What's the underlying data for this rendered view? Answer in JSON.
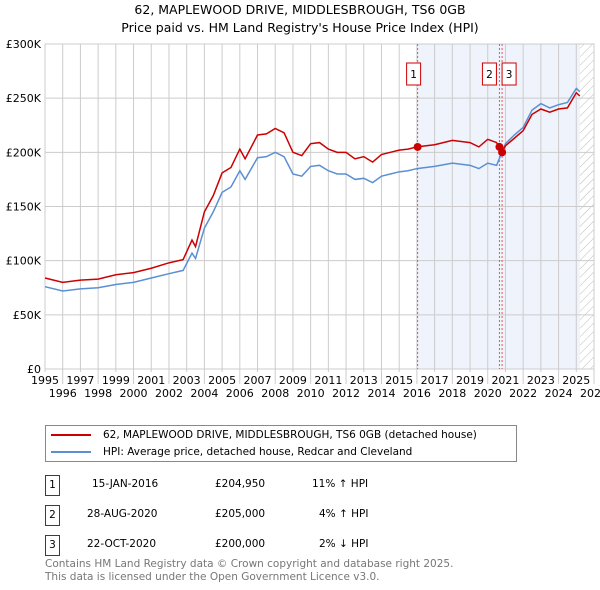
{
  "chart_data": {
    "type": "line",
    "title": "62, MAPLEWOOD DRIVE, MIDDLESBROUGH, TS6 0GB",
    "subtitle": "Price paid vs. HM Land Registry's House Price Index (HPI)",
    "xlim": [
      1995,
      2026
    ],
    "ylim": [
      0,
      300000
    ],
    "yticks": [
      0,
      50000,
      100000,
      150000,
      200000,
      250000,
      300000
    ],
    "ytick_labels": [
      "£0",
      "£50K",
      "£100K",
      "£150K",
      "£200K",
      "£250K",
      "£300K"
    ],
    "xticks": [
      1995,
      1996,
      1997,
      1998,
      1999,
      2000,
      2001,
      2002,
      2003,
      2004,
      2005,
      2006,
      2007,
      2008,
      2009,
      2010,
      2011,
      2012,
      2013,
      2014,
      2015,
      2016,
      2017,
      2018,
      2019,
      2020,
      2021,
      2022,
      2023,
      2024,
      2025,
      2026
    ],
    "grid": true,
    "shaded_range": [
      2016.04,
      2025.2
    ],
    "hatched_range": [
      2025.2,
      2026
    ],
    "series": [
      {
        "name": "62, MAPLEWOOD DRIVE, MIDDLESBROUGH, TS6 0GB (detached house)",
        "color": "#cc0000",
        "x": [
          1995,
          1996,
          1997,
          1998,
          1999,
          2000,
          2001,
          2002,
          2002.8,
          2003.3,
          2003.5,
          2004,
          2004.5,
          2005,
          2005.5,
          2006,
          2006.3,
          2007,
          2007.5,
          2008,
          2008.5,
          2009,
          2009.5,
          2010,
          2010.5,
          2011,
          2011.5,
          2012,
          2012.5,
          2013,
          2013.5,
          2014,
          2014.5,
          2015,
          2015.5,
          2016,
          2017,
          2018,
          2019,
          2019.5,
          2020,
          2020.5,
          2020.8,
          2021,
          2021.5,
          2022,
          2022.5,
          2023,
          2023.5,
          2024,
          2024.5,
          2025,
          2025.2
        ],
        "y": [
          84000,
          80000,
          82000,
          83000,
          87000,
          89000,
          93000,
          98000,
          101000,
          119000,
          113000,
          145000,
          160000,
          181000,
          186000,
          203000,
          194000,
          216000,
          217000,
          222000,
          218000,
          200000,
          197000,
          208000,
          209000,
          203000,
          200000,
          200000,
          194000,
          196000,
          191000,
          198000,
          200000,
          202000,
          203000,
          205000,
          207000,
          211000,
          209000,
          205000,
          212000,
          209000,
          200000,
          206000,
          213000,
          220000,
          235000,
          240000,
          237000,
          240000,
          241000,
          255000,
          252000
        ]
      },
      {
        "name": "HPI: Average price, detached house, Redcar and Cleveland",
        "color": "#5b8fd4",
        "x": [
          1995,
          1996,
          1997,
          1998,
          1999,
          2000,
          2001,
          2002,
          2002.8,
          2003.3,
          2003.5,
          2004,
          2004.5,
          2005,
          2005.5,
          2006,
          2006.3,
          2007,
          2007.5,
          2008,
          2008.5,
          2009,
          2009.5,
          2010,
          2010.5,
          2011,
          2011.5,
          2012,
          2012.5,
          2013,
          2013.5,
          2014,
          2014.5,
          2015,
          2015.5,
          2016,
          2017,
          2018,
          2019,
          2019.5,
          2020,
          2020.5,
          2020.8,
          2021,
          2021.5,
          2022,
          2022.5,
          2023,
          2023.5,
          2024,
          2024.5,
          2025,
          2025.2
        ],
        "y": [
          76000,
          72000,
          74000,
          75000,
          78000,
          80000,
          84000,
          88000,
          91000,
          107000,
          102000,
          130000,
          145000,
          163000,
          168000,
          183000,
          175000,
          195000,
          196000,
          200000,
          196000,
          180000,
          178000,
          187000,
          188000,
          183000,
          180000,
          180000,
          175000,
          176000,
          172000,
          178000,
          180000,
          182000,
          183000,
          185000,
          187000,
          190000,
          188000,
          185000,
          190000,
          188000,
          200000,
          208000,
          216000,
          223000,
          239000,
          245000,
          241000,
          244000,
          246000,
          259000,
          256000
        ]
      }
    ],
    "sales": [
      {
        "label": "1",
        "x": 2016.04,
        "y": 204950
      },
      {
        "label": "2",
        "x": 2020.66,
        "y": 205000
      },
      {
        "label": "3",
        "x": 2020.81,
        "y": 200000
      }
    ]
  },
  "legend": {
    "items": [
      "62, MAPLEWOOD DRIVE, MIDDLESBROUGH, TS6 0GB (detached house)",
      "HPI: Average price, detached house, Redcar and Cleveland"
    ]
  },
  "transactions": [
    {
      "num": "1",
      "date": "15-JAN-2016",
      "price": "£204,950",
      "hpi": "11% ↑ HPI"
    },
    {
      "num": "2",
      "date": "28-AUG-2020",
      "price": "£205,000",
      "hpi": "4% ↑ HPI"
    },
    {
      "num": "3",
      "date": "22-OCT-2020",
      "price": "£200,000",
      "hpi": "2% ↓ HPI"
    }
  ],
  "footer": {
    "line1": "Contains HM Land Registry data © Crown copyright and database right 2025.",
    "line2": "This data is licensed under the Open Government Licence v3.0."
  }
}
